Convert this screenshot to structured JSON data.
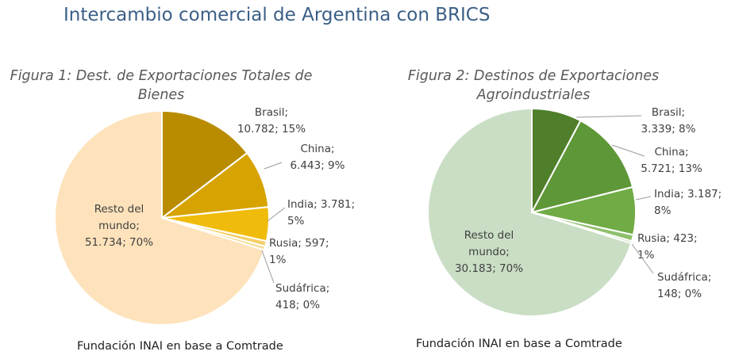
{
  "page": {
    "title": "Intercambio comercial de Argentina con BRICS"
  },
  "chart_data": [
    {
      "type": "pie",
      "title": "Figura 1: Dest. de Exportaciones Totales de Bienes",
      "title_lines": [
        "Figura 1: Dest. de Exportaciones Totales de",
        "Bienes"
      ],
      "source": "Fundación INAI en base a Comtrade",
      "slices": [
        {
          "name": "Brasil",
          "value": 10782,
          "percent": 15,
          "color": "#b98c00",
          "label_lines": [
            "Brasil;",
            "10.782; 15%"
          ]
        },
        {
          "name": "China",
          "value": 6443,
          "percent": 9,
          "color": "#d6a300",
          "label_lines": [
            "China;",
            "6.443; 9%"
          ]
        },
        {
          "name": "India",
          "value": 3781,
          "percent": 5,
          "color": "#f0bc0c",
          "label_lines": [
            "India; 3.781;",
            "5%"
          ]
        },
        {
          "name": "Rusia",
          "value": 597,
          "percent": 1,
          "color": "#f4d06a",
          "label_lines": [
            "Rusia; 597;",
            "1%"
          ]
        },
        {
          "name": "Sudáfrica",
          "value": 418,
          "percent": 0,
          "color": "#f7dd95",
          "label_lines": [
            "Sudáfrica;",
            "418; 0%"
          ]
        },
        {
          "name": "Resto del mundo",
          "value": 51734,
          "percent": 70,
          "color": "#fde2bb",
          "label_lines": [
            "Resto del",
            "mundo;",
            "51.734; 70%"
          ]
        }
      ]
    },
    {
      "type": "pie",
      "title": "Figura 2: Destinos de Exportaciones Agroindustriales",
      "title_lines": [
        "Figura 2: Destinos de Exportaciones",
        "Agroindustriales"
      ],
      "source": "Fundación INAI en base a Comtrade",
      "slices": [
        {
          "name": "Brasil",
          "value": 3339,
          "percent": 8,
          "color": "#4f7f2a",
          "label_lines": [
            "Brasil;",
            "3.339; 8%"
          ]
        },
        {
          "name": "China",
          "value": 5721,
          "percent": 13,
          "color": "#5e9738",
          "label_lines": [
            "China;",
            "5.721; 13%"
          ]
        },
        {
          "name": "India",
          "value": 3187,
          "percent": 8,
          "color": "#70ab45",
          "label_lines": [
            "India; 3.187;",
            "8%"
          ]
        },
        {
          "name": "Rusia",
          "value": 423,
          "percent": 1,
          "color": "#8fbf6c",
          "label_lines": [
            "Rusia; 423;",
            "1%"
          ]
        },
        {
          "name": "Sudáfrica",
          "value": 148,
          "percent": 0,
          "color": "#afcf98",
          "label_lines": [
            "Sudáfrica;",
            "148; 0%"
          ]
        },
        {
          "name": "Resto del mundo",
          "value": 30183,
          "percent": 70,
          "color": "#c9dec4",
          "label_lines": [
            "Resto del",
            "mundo;",
            "30.183; 70%"
          ]
        }
      ]
    }
  ]
}
